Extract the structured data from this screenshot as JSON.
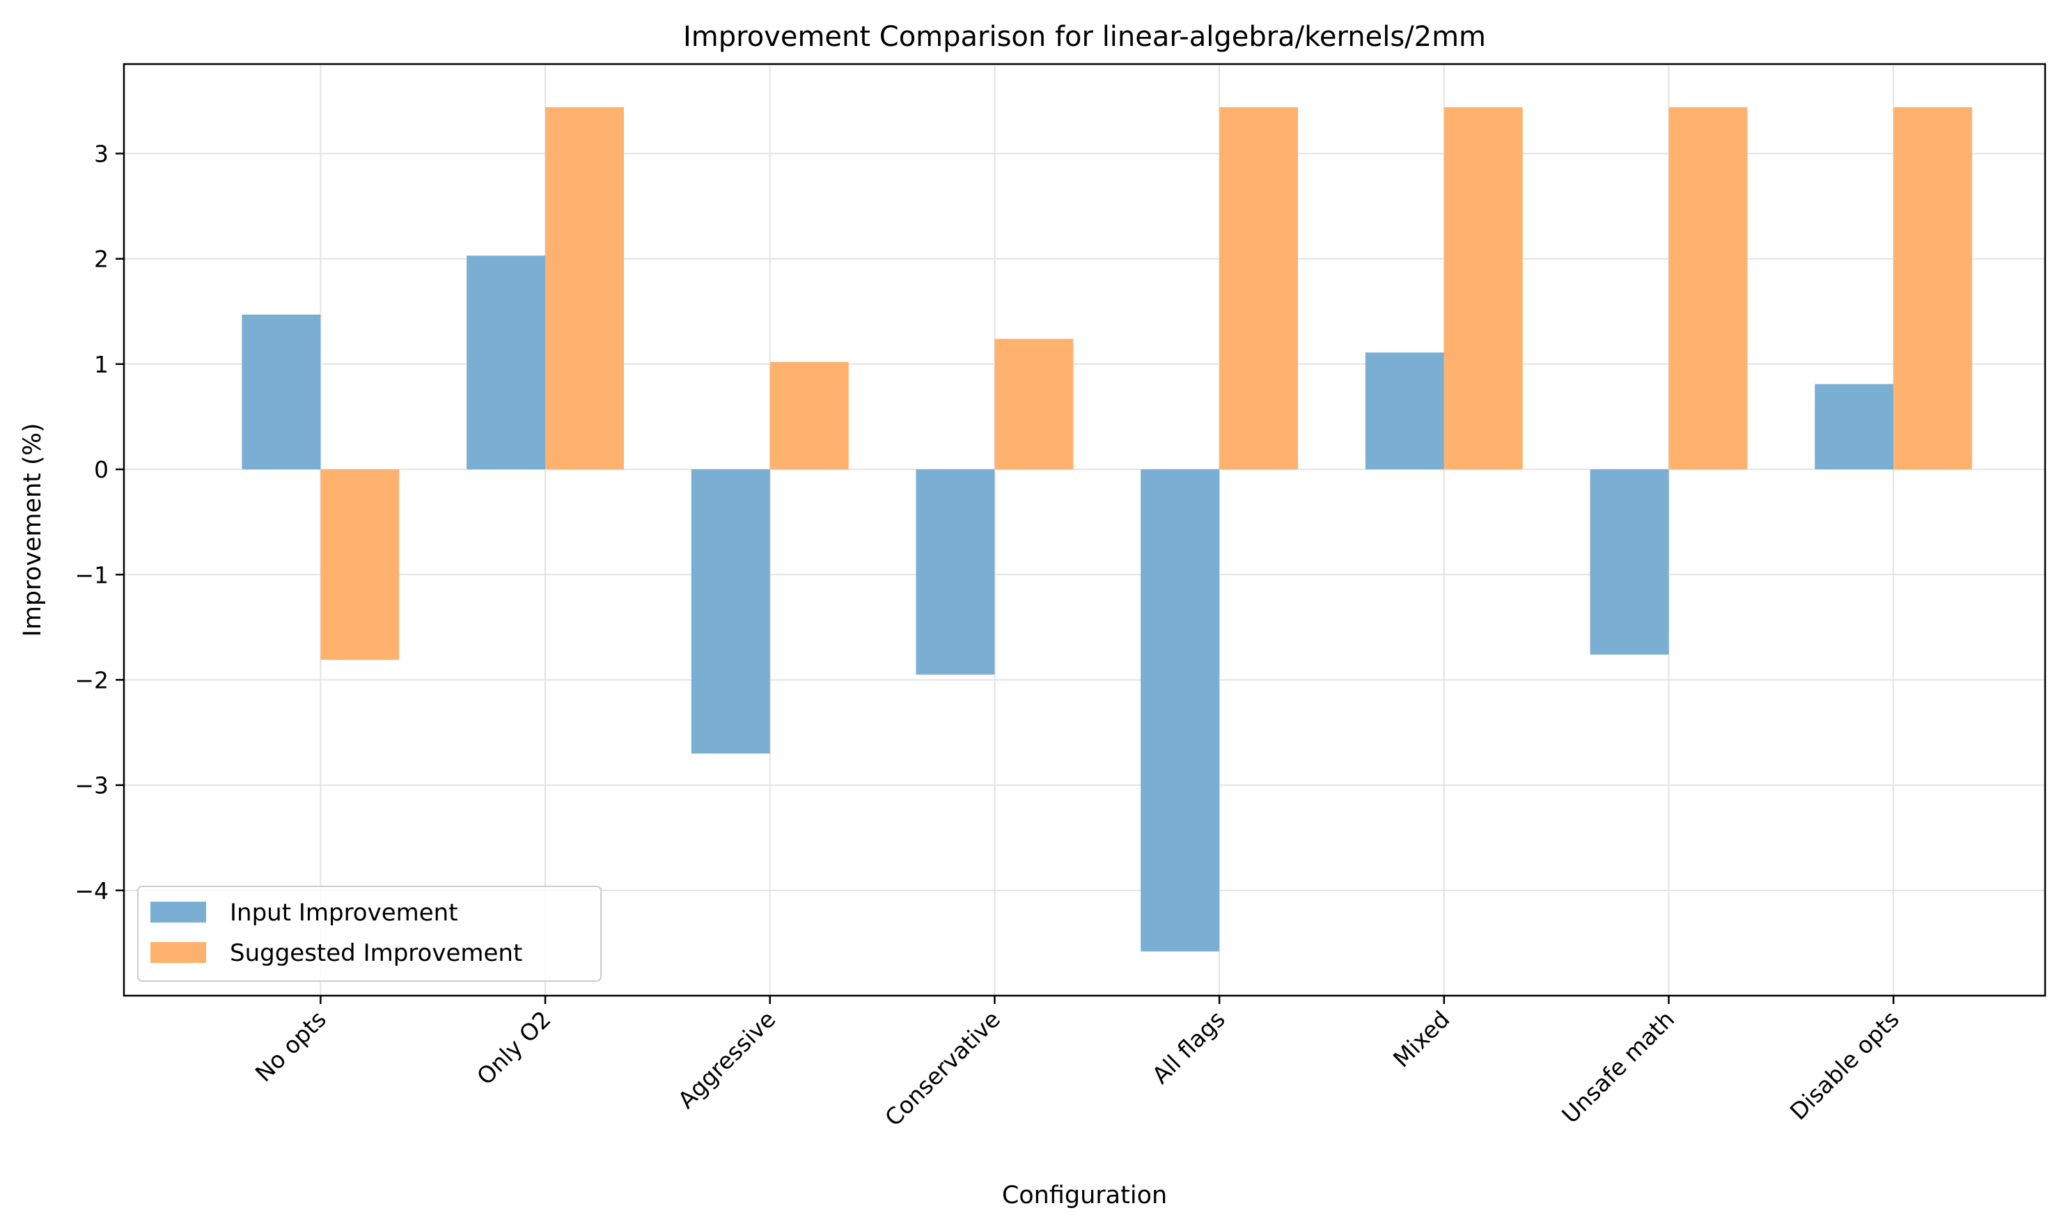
{
  "chart_data": {
    "type": "bar",
    "title": "Improvement Comparison for linear-algebra/kernels/2mm",
    "xlabel": "Configuration",
    "ylabel": "Improvement (%)",
    "categories": [
      "No opts",
      "Only O2",
      "Aggressive",
      "Conservative",
      "All flags",
      "Mixed",
      "Unsafe math",
      "Disable opts"
    ],
    "series": [
      {
        "name": "Input Improvement",
        "color": "#7aaed3",
        "values": [
          1.47,
          2.03,
          -2.7,
          -1.95,
          -4.58,
          1.11,
          -1.76,
          0.81
        ]
      },
      {
        "name": "Suggested Improvement",
        "color": "#ffb26e",
        "values": [
          -1.81,
          3.44,
          1.02,
          1.24,
          3.44,
          3.44,
          3.44,
          3.44
        ]
      }
    ],
    "ylim": [
      -5.0,
      3.85
    ],
    "yticks": [
      -4,
      -3,
      -2,
      -1,
      0,
      1,
      2,
      3
    ],
    "ytick_labels": [
      "−4",
      "−3",
      "−2",
      "−1",
      "0",
      "1",
      "2",
      "3"
    ],
    "grid": true,
    "legend_position": "lower-left"
  }
}
